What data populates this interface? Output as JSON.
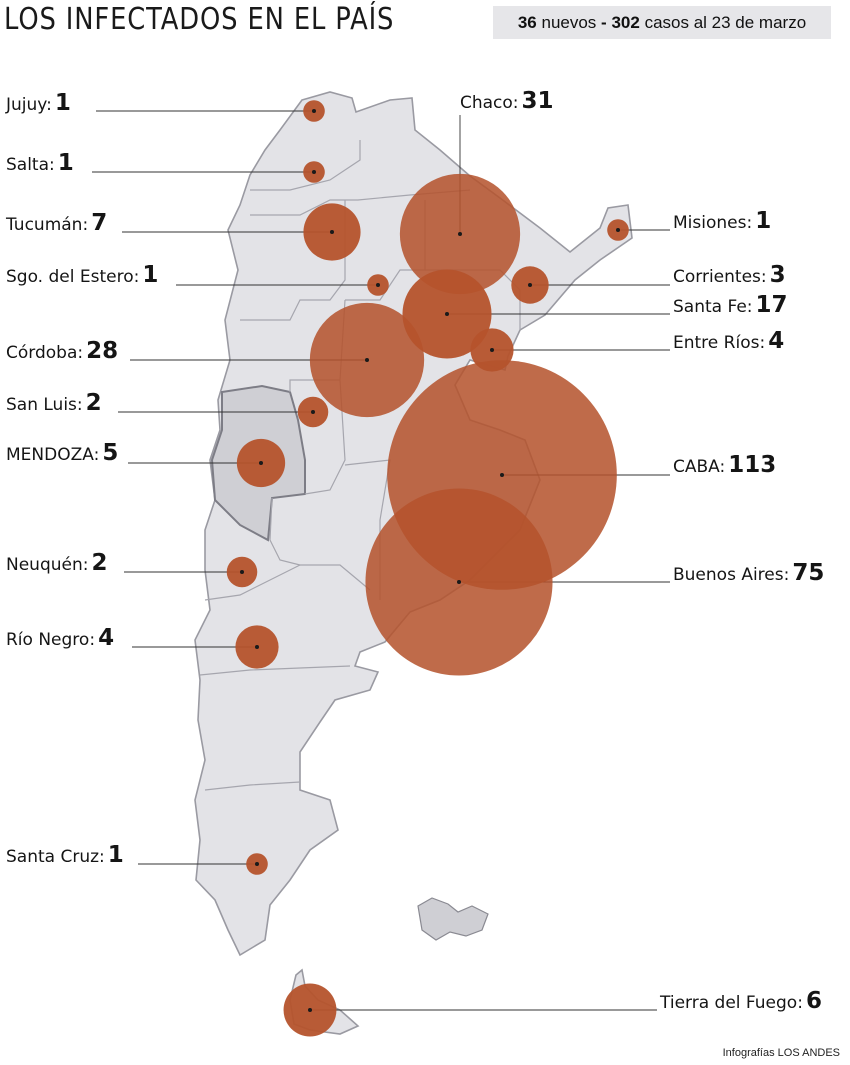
{
  "header": {
    "title": "LOS INFECTADOS EN EL PAÍS",
    "new_count": "36",
    "new_label": "nuevos",
    "separator": "-",
    "total_count": "302",
    "total_label": "casos al 23 de marzo"
  },
  "colors": {
    "bubble": "#b5532c",
    "land": "#e3e3e7",
    "land_highlight": "#cfcfd4",
    "border": "#9a9aa2",
    "leader": "#333333"
  },
  "provinces": [
    {
      "id": "jujuy",
      "name": "Jujuy:",
      "cases": 1
    },
    {
      "id": "salta",
      "name": "Salta:",
      "cases": 1
    },
    {
      "id": "tucuman",
      "name": "Tucumán:",
      "cases": 7
    },
    {
      "id": "sgo-del-estero",
      "name": "Sgo. del Estero:",
      "cases": 1
    },
    {
      "id": "cordoba",
      "name": "Córdoba:",
      "cases": 28
    },
    {
      "id": "san-luis",
      "name": "San Luis:",
      "cases": 2
    },
    {
      "id": "mendoza",
      "name": "MENDOZA:",
      "cases": 5
    },
    {
      "id": "neuquen",
      "name": "Neuquén:",
      "cases": 2
    },
    {
      "id": "rio-negro",
      "name": "Río Negro:",
      "cases": 4
    },
    {
      "id": "santa-cruz",
      "name": "Santa Cruz:",
      "cases": 1
    },
    {
      "id": "chaco",
      "name": "Chaco:",
      "cases": 31
    },
    {
      "id": "misiones",
      "name": "Misiones:",
      "cases": 1
    },
    {
      "id": "corrientes",
      "name": "Corrientes:",
      "cases": 3
    },
    {
      "id": "santa-fe",
      "name": "Santa Fe:",
      "cases": 17
    },
    {
      "id": "entre-rios",
      "name": "Entre Ríos:",
      "cases": 4
    },
    {
      "id": "caba",
      "name": "CABA:",
      "cases": 113
    },
    {
      "id": "buenos-aires",
      "name": "Buenos Aires:",
      "cases": 75
    },
    {
      "id": "tierra-del-fuego",
      "name": "Tierra del Fuego:",
      "cases": 6
    }
  ],
  "credit": "Infografías LOS ANDES"
}
